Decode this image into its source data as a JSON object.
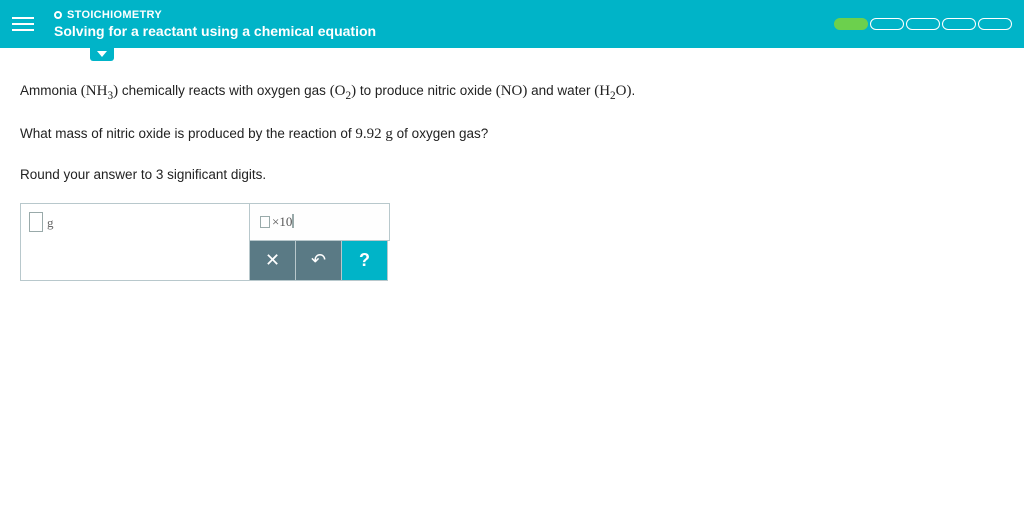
{
  "header": {
    "category": "STOICHIOMETRY",
    "title": "Solving for a reactant using a chemical equation",
    "progress_segments": 5,
    "progress_filled": 1
  },
  "problem": {
    "line1_pre": "Ammonia ",
    "f1": "(NH",
    "f1_sub": "3",
    "f1_post": ")",
    "line1_mid": " chemically reacts with oxygen gas ",
    "f2": "(O",
    "f2_sub": "2",
    "f2_post": ")",
    "line1_mid2": " to produce nitric oxide ",
    "f3": "(NO)",
    "line1_mid3": "  and water ",
    "f4": "(H",
    "f4_sub": "2",
    "f4_post": "O)",
    "line1_end": ".",
    "line2_pre": "What mass of nitric oxide is produced by the reaction of ",
    "mass_value": "9.92 g",
    "line2_post": " of oxygen gas?",
    "line3": "Round your answer to 3 significant digits."
  },
  "answer": {
    "unit": "g",
    "scinot_label": "×10"
  },
  "buttons": {
    "clear": "✕",
    "undo": "↶",
    "help": "?"
  }
}
